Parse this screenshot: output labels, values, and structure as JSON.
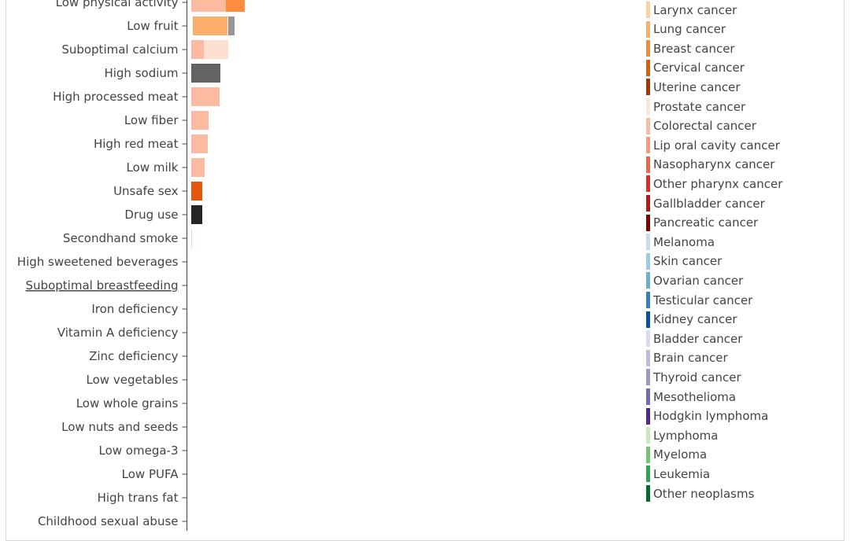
{
  "chart_data": {
    "type": "bar",
    "orientation": "horizontal",
    "stacked": true,
    "categories": [
      "Low physical activity",
      "Low fruit",
      "Suboptimal calcium",
      "High sodium",
      "High processed meat",
      "Low fiber",
      "High red meat",
      "Low milk",
      "Unsafe sex",
      "Drug use",
      "Secondhand smoke",
      "High sweetened beverages",
      "Suboptimal breastfeeding",
      "Iron deficiency",
      "Vitamin A deficiency",
      "Zinc deficiency",
      "Low vegetables",
      "Low whole grains",
      "Low nuts and seeds",
      "Low omega-3",
      "Low PUFA",
      "High trans fat",
      "Childhood sexual abuse"
    ],
    "underlined_category": "Suboptimal breastfeeding",
    "stacks": [
      {
        "category": "Low physical activity",
        "segments": [
          {
            "color": "#fcbba1",
            "value": 44
          },
          {
            "color": "#fd8d3c",
            "value": 24
          }
        ]
      },
      {
        "category": "Low fruit",
        "segments": [
          {
            "color": "#ffffff",
            "value": 2
          },
          {
            "color": "#fdae6b",
            "value": 44
          },
          {
            "color": "#ffffff",
            "value": 1
          },
          {
            "color": "#969696",
            "value": 8
          }
        ]
      },
      {
        "category": "Suboptimal calcium",
        "segments": [
          {
            "color": "#fcbba1",
            "value": 16
          },
          {
            "color": "#fee0d2",
            "value": 31
          }
        ]
      },
      {
        "category": "High sodium",
        "segments": [
          {
            "color": "#636363",
            "value": 37
          }
        ]
      },
      {
        "category": "High processed meat",
        "segments": [
          {
            "color": "#fcbba1",
            "value": 36
          }
        ]
      },
      {
        "category": "Low fiber",
        "segments": [
          {
            "color": "#fcbba1",
            "value": 22
          }
        ]
      },
      {
        "category": "High red meat",
        "segments": [
          {
            "color": "#fcbba1",
            "value": 21
          }
        ]
      },
      {
        "category": "Low milk",
        "segments": [
          {
            "color": "#fcbba1",
            "value": 17
          }
        ]
      },
      {
        "category": "Unsafe sex",
        "segments": [
          {
            "color": "#e6550d",
            "value": 14
          }
        ]
      },
      {
        "category": "Drug use",
        "segments": [
          {
            "color": "#252525",
            "value": 14
          }
        ]
      },
      {
        "category": "Secondhand smoke",
        "segments": [
          {
            "color": "#c7e9c0",
            "value": 1
          }
        ]
      },
      {
        "category": "High sweetened beverages",
        "segments": []
      },
      {
        "category": "Suboptimal breastfeeding",
        "segments": []
      },
      {
        "category": "Iron deficiency",
        "segments": []
      },
      {
        "category": "Vitamin A deficiency",
        "segments": []
      },
      {
        "category": "Zinc deficiency",
        "segments": []
      },
      {
        "category": "Low vegetables",
        "segments": []
      },
      {
        "category": "Low whole grains",
        "segments": []
      },
      {
        "category": "Low nuts and seeds",
        "segments": []
      },
      {
        "category": "Low omega-3",
        "segments": []
      },
      {
        "category": "Low PUFA",
        "segments": []
      },
      {
        "category": "High trans fat",
        "segments": []
      },
      {
        "category": "Childhood sexual abuse",
        "segments": []
      }
    ],
    "legend": [
      {
        "name": "Larynx cancer",
        "color": "#fdd0a2"
      },
      {
        "name": "Lung cancer",
        "color": "#fdae6b"
      },
      {
        "name": "Breast cancer",
        "color": "#f28a3c"
      },
      {
        "name": "Cervical cancer",
        "color": "#d95f0e"
      },
      {
        "name": "Uterine cancer",
        "color": "#a63603"
      },
      {
        "name": "Prostate cancer",
        "color": "#fee6dc"
      },
      {
        "name": "Colorectal cancer",
        "color": "#fcbba1"
      },
      {
        "name": "Lip oral cavity cancer",
        "color": "#f6987c"
      },
      {
        "name": "Nasopharynx cancer",
        "color": "#ef6548"
      },
      {
        "name": "Other pharynx cancer",
        "color": "#de2d26"
      },
      {
        "name": "Gallbladder cancer",
        "color": "#b31b1b"
      },
      {
        "name": "Pancreatic cancer",
        "color": "#7f0000"
      },
      {
        "name": "Melanoma",
        "color": "#c6dbef"
      },
      {
        "name": "Skin cancer",
        "color": "#9ecae1"
      },
      {
        "name": "Ovarian cancer",
        "color": "#6baed6"
      },
      {
        "name": "Testicular cancer",
        "color": "#3182bd"
      },
      {
        "name": "Kidney cancer",
        "color": "#08519c"
      },
      {
        "name": "Bladder cancer",
        "color": "#dadaeb"
      },
      {
        "name": "Brain cancer",
        "color": "#bcbddc"
      },
      {
        "name": "Thyroid cancer",
        "color": "#9e9ac8"
      },
      {
        "name": "Mesothelioma",
        "color": "#756bb1"
      },
      {
        "name": "Hodgkin lymphoma",
        "color": "#54278f"
      },
      {
        "name": "Lymphoma",
        "color": "#c7e9c0"
      },
      {
        "name": "Myeloma",
        "color": "#74c476"
      },
      {
        "name": "Leukemia",
        "color": "#31a354"
      },
      {
        "name": "Other neoplasms",
        "color": "#006d2c"
      }
    ],
    "legend_placement": "right",
    "grid": false
  }
}
